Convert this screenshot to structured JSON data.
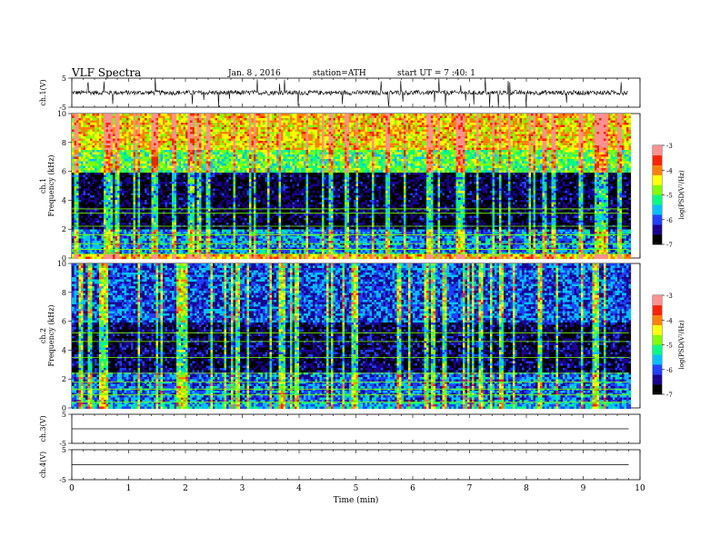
{
  "header": {
    "title": "VLF Spectra",
    "date": "Jan. 8 , 2016",
    "station": "station=ATH",
    "start": "start UT = 7 :40: 1"
  },
  "colors": {
    "colorbar": [
      "#000000",
      "#1a0090",
      "#1f3fff",
      "#00c0ff",
      "#00ff80",
      "#7fff00",
      "#ffff00",
      "#ff8000",
      "#ff2000",
      "#ff9090",
      "#ffffff"
    ],
    "trace": "#000000"
  },
  "chart_data": [
    {
      "type": "line",
      "panel": "ch1-waveform",
      "ylabel": "ch.1(V)",
      "ylim": [
        -5,
        5
      ],
      "yticks": [
        "5",
        "-5"
      ],
      "xlim": [
        0,
        10
      ],
      "series": [
        {
          "x_range": [
            0,
            9.8
          ],
          "baseline": 0,
          "note": "noisy waveform with spikes"
        }
      ]
    },
    {
      "type": "heatmap",
      "panel": "ch1-spectrogram",
      "ylabel": "ch.1\nFrequency (kHz)",
      "ylim": [
        0,
        10
      ],
      "yticks": [
        "0",
        "2",
        "4",
        "6",
        "8",
        "10"
      ],
      "xlim": [
        0,
        10
      ],
      "colorbar": {
        "label": "log(PSD(V²/Hz)",
        "range": [
          -7,
          -3
        ],
        "ticks": [
          "-3",
          "-4",
          "-5",
          "-6",
          "-7"
        ]
      },
      "bands": [
        {
          "fmin": 0,
          "fmax": 0.4,
          "level": -4.2
        },
        {
          "fmin": 0.4,
          "fmax": 2.0,
          "level": -5.8
        },
        {
          "fmin": 2.0,
          "fmax": 6.0,
          "level": -6.7
        },
        {
          "fmin": 6.0,
          "fmax": 7.5,
          "level": -5.0
        },
        {
          "fmin": 7.5,
          "fmax": 10,
          "level": -4.3
        }
      ]
    },
    {
      "type": "heatmap",
      "panel": "ch2-spectrogram",
      "ylabel": "ch.2\nFrequency (kHz)",
      "ylim": [
        0,
        10
      ],
      "yticks": [
        "0",
        "2",
        "4",
        "6",
        "8",
        "10"
      ],
      "xlim": [
        0,
        10
      ],
      "colorbar": {
        "label": "log(PSD(V²/Hz)",
        "range": [
          -7,
          -3
        ],
        "ticks": [
          "-3",
          "-4",
          "-5",
          "-6",
          "-7"
        ]
      },
      "bands": [
        {
          "fmin": 0,
          "fmax": 0.5,
          "level": -5.6
        },
        {
          "fmin": 0.5,
          "fmax": 2.6,
          "level": -5.9
        },
        {
          "fmin": 2.6,
          "fmax": 6.0,
          "level": -6.6
        },
        {
          "fmin": 6.0,
          "fmax": 10,
          "level": -6.0
        }
      ]
    },
    {
      "type": "line",
      "panel": "ch3-waveform",
      "ylabel": "ch.3(V)",
      "ylim": [
        -5,
        5
      ],
      "yticks": [
        "5",
        "-5"
      ],
      "xlim": [
        0,
        10
      ],
      "series": [
        {
          "x_range": [
            0,
            9.8
          ],
          "constant": 0
        }
      ]
    },
    {
      "type": "line",
      "panel": "ch4-waveform",
      "ylabel": "ch.4(V)",
      "ylim": [
        -5,
        5
      ],
      "yticks": [
        "5",
        "-5"
      ],
      "xlim": [
        0,
        10
      ],
      "series": [
        {
          "x_range": [
            0,
            9.8
          ],
          "constant": 0
        }
      ]
    }
  ],
  "xaxis": {
    "label": "Time (min)",
    "ticks": [
      "0",
      "1",
      "2",
      "3",
      "4",
      "5",
      "6",
      "7",
      "8",
      "9",
      "10"
    ]
  }
}
